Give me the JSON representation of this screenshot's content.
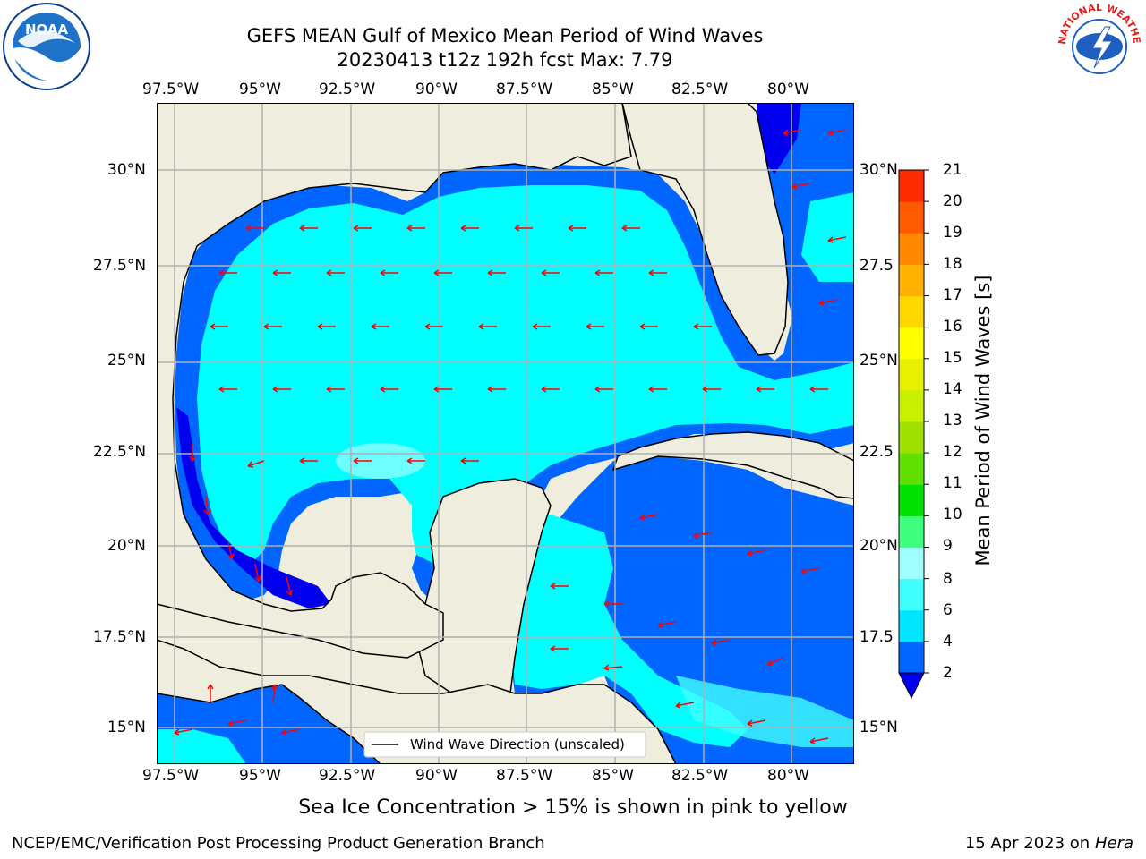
{
  "title": {
    "line1": "GEFS MEAN Gulf of Mexico Mean Period of Wind Waves",
    "line2": "20230413 t12z 192h fcst   Max: 7.79"
  },
  "logos": {
    "left": "NOAA",
    "left_ring": "NATIONAL OCEANIC AND ATMOSPHERIC ADMINISTRATION · U.S. DEPARTMENT OF COMMERCE",
    "right_ring": "NATIONAL WEATHER SERVICE"
  },
  "map": {
    "lon_labels": [
      "97.5°W",
      "95°W",
      "92.5°W",
      "90°W",
      "87.5°W",
      "85°W",
      "82.5°W",
      "80°W"
    ],
    "lat_labels_left": [
      "30°N",
      "27.5°N",
      "25°N",
      "22.5°N",
      "20°N",
      "17.5°N",
      "15°N"
    ],
    "lat_labels_right": [
      "30°N",
      "27.5",
      "25°N",
      "22.5",
      "20°N",
      "17.5",
      "15°N"
    ],
    "legend": "Wind Wave Direction (unscaled)",
    "colors": {
      "land": "#efedde",
      "arrows": "#ff0000",
      "grid": "#b0b0b0"
    }
  },
  "colorbar": {
    "label": "Mean Period of Wind Waves [s]",
    "ticks": [
      "2",
      "4",
      "6",
      "8",
      "9",
      "10",
      "11",
      "12",
      "13",
      "14",
      "15",
      "16",
      "17",
      "18",
      "19",
      "20",
      "21"
    ],
    "colors": [
      "#0066ff",
      "#00e5ff",
      "#40ffff",
      "#a0ffff",
      "#40ff80",
      "#00e000",
      "#60e000",
      "#a0e000",
      "#c8f000",
      "#e8f000",
      "#ffff00",
      "#ffd800",
      "#ffb000",
      "#ff8800",
      "#ff5a00",
      "#ff2a00",
      "#ff0000"
    ],
    "under_color": "#0000ee"
  },
  "caption": "Sea Ice Concentration > 15% is shown in pink to yellow",
  "footer": {
    "left": "NCEP/EMC/Verification Post Processing Product Generation Branch",
    "right_date": "15 Apr 2023 on",
    "right_machine": "Hera"
  }
}
